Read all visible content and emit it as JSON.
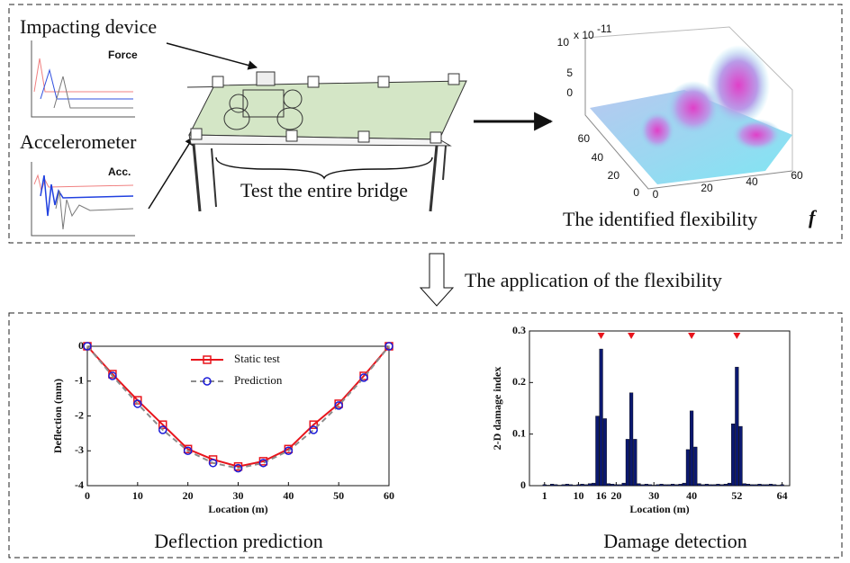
{
  "top_panel": {
    "impact_label": "Impacting device",
    "accelerometer_label": "Accelerometer",
    "force_plot_label": "Force",
    "acc_plot_label": "Acc.",
    "bridge_caption": "Test the entire bridge",
    "surface_plot": {
      "multiplier": "x 10",
      "exponent": "-11",
      "zticks": [
        10,
        5,
        0
      ],
      "yticks": [
        60,
        40,
        20,
        0
      ],
      "xticks": [
        0,
        20,
        40,
        60
      ]
    },
    "caption": "The identified flexibility",
    "symbol": "f"
  },
  "arrow_label": "The application of the flexibility",
  "chart_data": [
    {
      "type": "line",
      "caption": "Deflection prediction",
      "x_label": "Location (m)",
      "y_label": "Deflection (mm)",
      "x": [
        0,
        5,
        10,
        15,
        20,
        25,
        30,
        35,
        40,
        45,
        50,
        55,
        60
      ],
      "series": [
        {
          "name": "Static test",
          "color": "#e8141c",
          "marker": "square",
          "dashed": false,
          "values": [
            0,
            -0.8,
            -1.55,
            -2.25,
            -2.95,
            -3.25,
            -3.45,
            -3.3,
            -2.95,
            -2.25,
            -1.65,
            -0.85,
            0
          ]
        },
        {
          "name": "Prediction",
          "color": "#1c1cd8",
          "line_color": "#8c8c8c",
          "marker": "circle",
          "dashed": true,
          "values": [
            0,
            -0.85,
            -1.65,
            -2.4,
            -3.0,
            -3.35,
            -3.5,
            -3.35,
            -3.0,
            -2.4,
            -1.7,
            -0.9,
            0
          ]
        }
      ],
      "xlim": [
        0,
        60
      ],
      "xticks": [
        0,
        10,
        20,
        30,
        40,
        50,
        60
      ],
      "ylim": [
        -4,
        0
      ],
      "yticks": [
        -4,
        -3,
        -2,
        -1,
        0
      ],
      "legend": "upper-center"
    },
    {
      "type": "bar",
      "caption": "Damage detection",
      "x_label": "Location (m)",
      "y_label": "2-D damage index",
      "color": "#0b1870",
      "marker_color": "#e8141c",
      "damage_markers": [
        16,
        24,
        40,
        52
      ],
      "x": [
        1,
        2,
        3,
        4,
        5,
        6,
        7,
        8,
        9,
        10,
        11,
        12,
        13,
        14,
        15,
        16,
        17,
        18,
        19,
        20,
        21,
        22,
        23,
        24,
        25,
        26,
        27,
        28,
        29,
        30,
        31,
        32,
        33,
        34,
        35,
        36,
        37,
        38,
        39,
        40,
        41,
        42,
        43,
        44,
        45,
        46,
        47,
        48,
        49,
        50,
        51,
        52,
        53,
        54,
        55,
        56,
        57,
        58,
        59,
        60,
        61,
        62,
        63,
        64
      ],
      "values": [
        0.002,
        0.001,
        0.003,
        0.002,
        0.001,
        0.002,
        0.003,
        0.002,
        0.001,
        0.002,
        0.003,
        0.002,
        0.004,
        0.005,
        0.135,
        0.265,
        0.13,
        0.004,
        0.003,
        0.002,
        0.002,
        0.005,
        0.09,
        0.18,
        0.09,
        0.004,
        0.002,
        0.003,
        0.002,
        0.001,
        0.002,
        0.003,
        0.002,
        0.002,
        0.003,
        0.002,
        0.003,
        0.005,
        0.07,
        0.145,
        0.075,
        0.004,
        0.002,
        0.003,
        0.002,
        0.002,
        0.003,
        0.002,
        0.003,
        0.005,
        0.12,
        0.23,
        0.115,
        0.004,
        0.003,
        0.002,
        0.002,
        0.003,
        0.002,
        0.002,
        0.003,
        0.002,
        0.001,
        0.002
      ],
      "xlim": [
        -3,
        66
      ],
      "xticks": [
        1,
        10,
        16,
        20,
        30,
        40,
        52,
        64
      ],
      "ylim": [
        0,
        0.3
      ],
      "yticks": [
        0,
        0.1,
        0.2,
        0.3
      ]
    }
  ]
}
